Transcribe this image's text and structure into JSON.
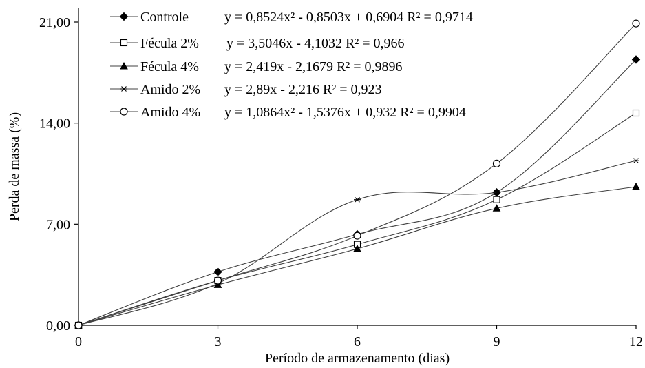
{
  "chart_data": {
    "type": "line",
    "xlabel": "Período de armazenamento (dias)",
    "ylabel": "Perda de massa (%)",
    "x": [
      0,
      3,
      6,
      9,
      12
    ],
    "x_tick_labels": [
      "0",
      "3",
      "6",
      "9",
      "12"
    ],
    "y_ticks": [
      0,
      7,
      14,
      21
    ],
    "y_tick_labels": [
      "0,00",
      "7,00",
      "14,00",
      "21,00"
    ],
    "xlim": [
      0,
      12
    ],
    "ylim": [
      0,
      21
    ],
    "grid": false,
    "legend_position": "top-left",
    "series": [
      {
        "name": "Controle",
        "marker": "diamond-filled",
        "values": [
          0,
          3.7,
          6.3,
          9.2,
          18.4
        ],
        "equation": "y = 0,8524x² - 0,8503x + 0,6904  R² = 0,9714"
      },
      {
        "name": "Fécula 2%",
        "marker": "square-open",
        "values": [
          0,
          3.1,
          5.6,
          8.7,
          14.7
        ],
        "equation": "y = 3,5046x - 4,1032  R² = 0,966"
      },
      {
        "name": "Fécula 4%",
        "marker": "triangle-filled",
        "values": [
          0,
          2.8,
          5.3,
          8.1,
          9.6
        ],
        "equation": "y = 2,419x - 2,1679  R² = 0,9896"
      },
      {
        "name": "Amido 2%",
        "marker": "asterisk",
        "values": [
          0,
          2.9,
          8.7,
          9.2,
          11.4
        ],
        "equation": "y = 2,89x - 2,216  R² = 0,923"
      },
      {
        "name": "Amido 4%",
        "marker": "circle-open",
        "values": [
          0,
          3.1,
          6.2,
          11.2,
          20.9
        ],
        "equation": "y = 1,0864x² - 1,5376x + 0,932  R² = 0,9904"
      }
    ]
  }
}
